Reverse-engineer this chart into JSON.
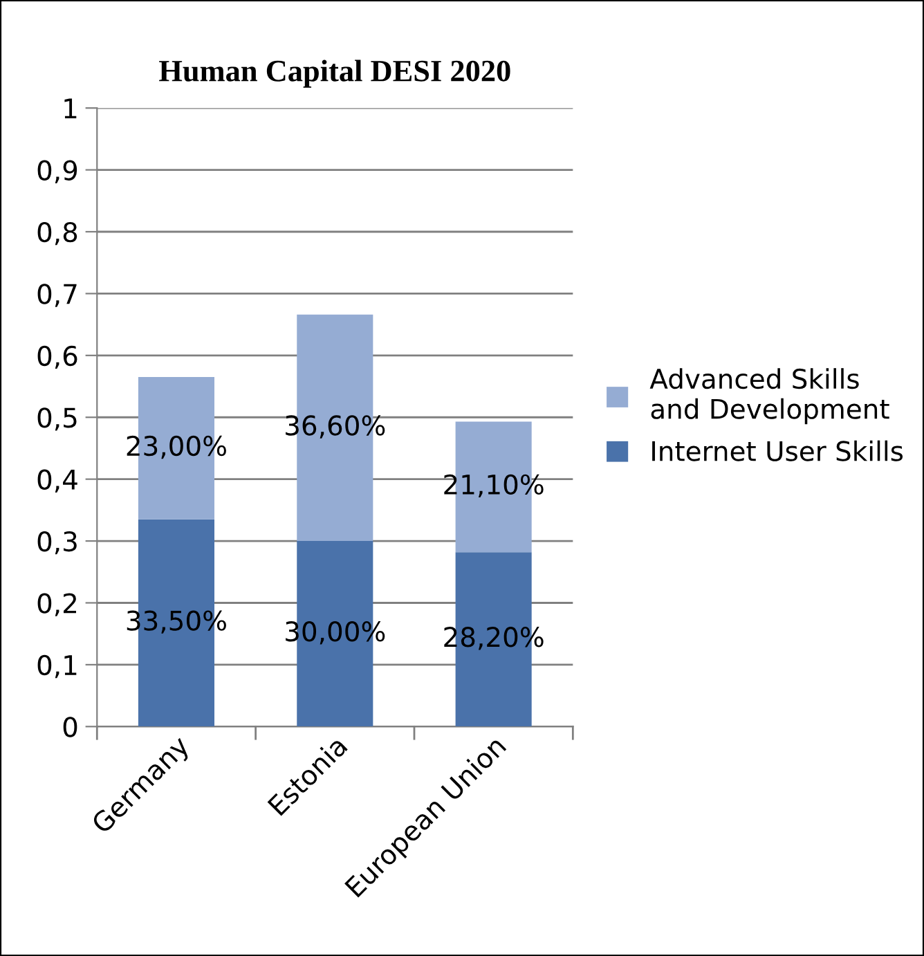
{
  "chart_data": {
    "type": "bar",
    "title": "Human Capital DESI 2020",
    "stacked": true,
    "categories": [
      "Germany",
      "Estonia",
      "European Union"
    ],
    "series": [
      {
        "name": "Internet User Skills",
        "color": "#4a72aa",
        "values": [
          0.335,
          0.3,
          0.282
        ],
        "value_labels": [
          "33,50%",
          "30,00%",
          "28,20%"
        ]
      },
      {
        "name": "Advanced Skills\nand Development",
        "color": "#95acd3",
        "values": [
          0.23,
          0.366,
          0.211
        ],
        "value_labels": [
          "23,00%",
          "36,60%",
          "21,10%"
        ]
      }
    ],
    "ylim": [
      0,
      1
    ],
    "yticks": [
      0,
      {
        "value": 0.1,
        "label": "0,1"
      },
      {
        "value": 0.2,
        "label": "0,2"
      },
      {
        "value": 0.3,
        "label": "0,3"
      },
      {
        "value": 0.4,
        "label": "0,4"
      },
      {
        "value": 0.5,
        "label": "0,5"
      },
      {
        "value": 0.6,
        "label": "0,6"
      },
      {
        "value": 0.7,
        "label": "0,7"
      },
      {
        "value": 0.8,
        "label": "0,8"
      },
      {
        "value": 0.9,
        "label": "0,9"
      },
      1
    ],
    "grid": "y",
    "legend": "right"
  }
}
